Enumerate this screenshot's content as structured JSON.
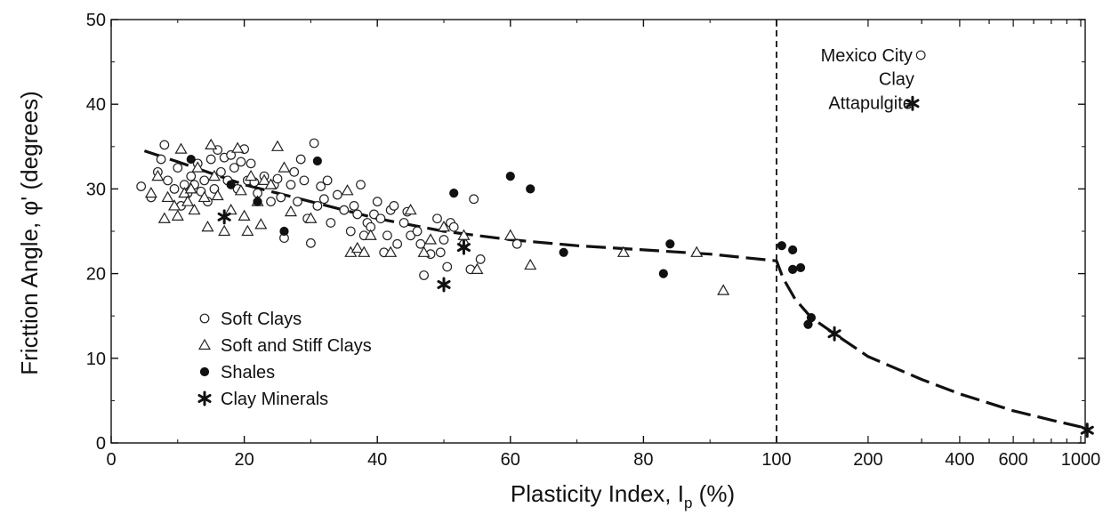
{
  "chart_data": {
    "type": "scatter",
    "xlabel": "Plasticity Index, I",
    "xlabel_sub": "p",
    "xlabel_unit": "(%)",
    "ylabel": "Fricttion Angle,  φ' (degrees)",
    "ylim": [
      0,
      50
    ],
    "y_ticks": [
      "0",
      "10",
      "20",
      "30",
      "40",
      "50"
    ],
    "x_scale": "linear 0–100, logarithmic 100–1000",
    "x_ticks_linear": [
      "0",
      "20",
      "40",
      "60",
      "80",
      "100"
    ],
    "x_ticks_log": [
      "200",
      "400",
      "600",
      "1000"
    ],
    "grid": false,
    "legend_position": "bottom-left",
    "legend": [
      {
        "label": "Soft Clays",
        "marker": "open-circle"
      },
      {
        "label": "Soft and Stiff Clays",
        "marker": "open-triangle"
      },
      {
        "label": "Shales",
        "marker": "filled-circle"
      },
      {
        "label": "Clay Minerals",
        "marker": "asterisk"
      }
    ],
    "annotations": [
      {
        "text": "Mexico City",
        "x": 280,
        "y": 45.8
      },
      {
        "text": "Clay",
        "x": 280,
        "y": 43.0
      },
      {
        "text": "Attapulgite",
        "x": 280,
        "y": 40.2
      }
    ],
    "divider_x": 100,
    "series": [
      {
        "name": "Soft Clays",
        "marker": "open-circle",
        "points": [
          [
            4.5,
            30.3
          ],
          [
            6,
            29
          ],
          [
            7,
            32
          ],
          [
            7.5,
            33.5
          ],
          [
            8,
            35.2
          ],
          [
            8.5,
            31
          ],
          [
            9.5,
            30
          ],
          [
            10,
            32.5
          ],
          [
            10.5,
            28
          ],
          [
            11,
            30.5
          ],
          [
            11.5,
            29.5
          ],
          [
            12,
            31.5
          ],
          [
            12.5,
            30.5
          ],
          [
            13,
            33
          ],
          [
            13.5,
            29.7
          ],
          [
            14,
            31
          ],
          [
            14.5,
            28.5
          ],
          [
            15,
            33.5
          ],
          [
            15.5,
            30
          ],
          [
            16,
            34.6
          ],
          [
            16.5,
            32
          ],
          [
            17,
            33.7
          ],
          [
            17.5,
            31
          ],
          [
            18,
            34
          ],
          [
            18.5,
            32.5
          ],
          [
            19,
            30
          ],
          [
            19.5,
            33.2
          ],
          [
            20,
            34.7
          ],
          [
            20.5,
            31
          ],
          [
            21,
            33
          ],
          [
            21.5,
            30.8
          ],
          [
            22,
            29.5
          ],
          [
            23,
            31.5
          ],
          [
            24,
            28.5
          ],
          [
            24.5,
            30.5
          ],
          [
            25,
            31.2
          ],
          [
            25.5,
            29
          ],
          [
            26,
            24.2
          ],
          [
            27,
            30.5
          ],
          [
            27.5,
            32
          ],
          [
            28,
            28.5
          ],
          [
            28.5,
            33.5
          ],
          [
            29,
            31
          ],
          [
            29.5,
            26.5
          ],
          [
            30,
            23.6
          ],
          [
            30.5,
            35.4
          ],
          [
            31,
            28
          ],
          [
            31.5,
            30.3
          ],
          [
            32,
            28.8
          ],
          [
            32.5,
            31
          ],
          [
            33,
            26
          ],
          [
            34,
            29.3
          ],
          [
            35,
            27.5
          ],
          [
            36,
            25
          ],
          [
            36.5,
            28
          ],
          [
            37,
            27
          ],
          [
            37.5,
            30.5
          ],
          [
            38,
            24.5
          ],
          [
            38.5,
            26
          ],
          [
            39,
            25.5
          ],
          [
            39.5,
            27
          ],
          [
            40,
            28.5
          ],
          [
            40.5,
            26.5
          ],
          [
            41,
            22.5
          ],
          [
            41.5,
            24.5
          ],
          [
            42,
            27.5
          ],
          [
            42.5,
            28
          ],
          [
            43,
            23.5
          ],
          [
            44,
            26
          ],
          [
            44.5,
            27.3
          ],
          [
            45,
            24.5
          ],
          [
            46,
            25
          ],
          [
            46.5,
            23.5
          ],
          [
            47,
            19.8
          ],
          [
            48,
            22.3
          ],
          [
            49,
            26.5
          ],
          [
            49.5,
            22.5
          ],
          [
            50,
            24
          ],
          [
            50.5,
            20.8
          ],
          [
            51,
            26
          ],
          [
            51.5,
            25.5
          ],
          [
            53,
            23.5
          ],
          [
            54,
            20.5
          ],
          [
            54.5,
            28.8
          ],
          [
            55.5,
            21.7
          ],
          [
            61,
            23.5
          ]
        ]
      },
      {
        "name": "Soft and Stiff Clays",
        "marker": "open-triangle",
        "points": [
          [
            6,
            29.5
          ],
          [
            7,
            31.5
          ],
          [
            8,
            26.5
          ],
          [
            8.5,
            29
          ],
          [
            9.5,
            28
          ],
          [
            10,
            26.8
          ],
          [
            10.5,
            34.7
          ],
          [
            11,
            29.5
          ],
          [
            11.5,
            28.5
          ],
          [
            12,
            30
          ],
          [
            12.5,
            27.5
          ],
          [
            13,
            32.5
          ],
          [
            14,
            29
          ],
          [
            14.5,
            25.5
          ],
          [
            15,
            35.2
          ],
          [
            15.5,
            31.5
          ],
          [
            16,
            29.2
          ],
          [
            17,
            25
          ],
          [
            18,
            27.5
          ],
          [
            19,
            34.8
          ],
          [
            19.5,
            29.8
          ],
          [
            20,
            26.8
          ],
          [
            20.5,
            25
          ],
          [
            21,
            31.5
          ],
          [
            22,
            28.5
          ],
          [
            22.5,
            25.8
          ],
          [
            23,
            31
          ],
          [
            24,
            30.5
          ],
          [
            25,
            35
          ],
          [
            26,
            32.5
          ],
          [
            27,
            27.3
          ],
          [
            30,
            26.5
          ],
          [
            35.5,
            29.8
          ],
          [
            36,
            22.5
          ],
          [
            37,
            23
          ],
          [
            38,
            22.5
          ],
          [
            39,
            24.5
          ],
          [
            42,
            22.5
          ],
          [
            45,
            27.5
          ],
          [
            47,
            22.5
          ],
          [
            48,
            24
          ],
          [
            50,
            25.5
          ],
          [
            53,
            24.5
          ],
          [
            55,
            20.5
          ],
          [
            60,
            24.5
          ],
          [
            63,
            21
          ],
          [
            77,
            22.5
          ],
          [
            88,
            22.5
          ],
          [
            92,
            18
          ]
        ]
      },
      {
        "name": "Shales",
        "marker": "filled-circle",
        "points": [
          [
            12,
            33.5
          ],
          [
            18,
            30.5
          ],
          [
            22,
            28.5
          ],
          [
            26,
            25
          ],
          [
            31,
            33.3
          ],
          [
            51.5,
            29.5
          ],
          [
            60,
            31.5
          ],
          [
            63,
            30
          ],
          [
            68,
            22.5
          ],
          [
            83,
            20
          ],
          [
            84,
            23.5
          ],
          [
            104,
            23.3
          ],
          [
            113,
            22.8
          ],
          [
            113,
            20.5
          ],
          [
            120,
            20.7
          ],
          [
            127,
            14
          ],
          [
            130,
            14.8
          ]
        ]
      },
      {
        "name": "Clay Minerals",
        "marker": "asterisk",
        "points": [
          [
            17,
            26.7
          ],
          [
            50,
            18.7
          ],
          [
            53,
            23.1
          ],
          [
            155,
            12.9
          ],
          [
            1050,
            1.5
          ]
        ]
      }
    ],
    "trend_line": {
      "style": "dashed",
      "points": [
        [
          5,
          34.5
        ],
        [
          10,
          33.2
        ],
        [
          20,
          30.5
        ],
        [
          30,
          28.5
        ],
        [
          40,
          26.5
        ],
        [
          50,
          25
        ],
        [
          60,
          24
        ],
        [
          70,
          23.3
        ],
        [
          80,
          22.8
        ],
        [
          90,
          22.3
        ],
        [
          100,
          21.5
        ],
        [
          105,
          19.5
        ],
        [
          115,
          17
        ],
        [
          130,
          14.8
        ],
        [
          155,
          12.9
        ],
        [
          200,
          10.2
        ],
        [
          300,
          7.5
        ],
        [
          400,
          5.8
        ],
        [
          600,
          3.8
        ],
        [
          800,
          2.7
        ],
        [
          1000,
          1.9
        ]
      ]
    },
    "reference_marks": [
      {
        "marker": "open-circle",
        "x": 298,
        "y": 45.8
      },
      {
        "marker": "asterisk",
        "x": 280,
        "y": 40.1
      }
    ]
  }
}
